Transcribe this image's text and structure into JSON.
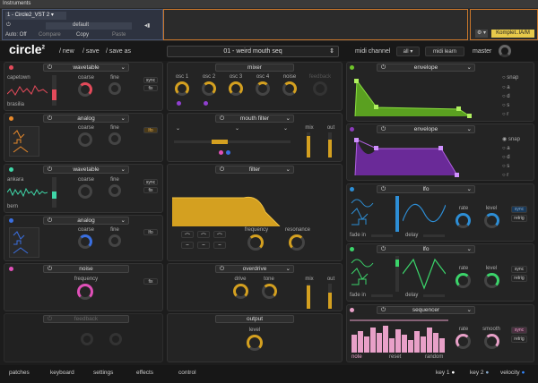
{
  "host": {
    "window_title": "Instruments",
    "track": "1 - Circle2_VST 2",
    "auto": "Auto: Off",
    "compare": "Compare",
    "copy": "Copy",
    "paste": "Paste",
    "preset": "default",
    "plugin": "Komplet..IA/M"
  },
  "app": {
    "logo": "circle",
    "logo_sup": "2",
    "menu": [
      "/ new",
      "/ save",
      "/ save as"
    ],
    "preset_name": "01 - weird mouth seq",
    "midi_channel_label": "midi channel",
    "midi_channel_value": "all",
    "midi_learn": "midi learn",
    "master": "master"
  },
  "modules": {
    "wavetable1": {
      "title": "wavetable",
      "wave_top": "capetown",
      "wave_bottom": "brasilia",
      "coarse": "coarse",
      "fine": "fine",
      "sync": "sync",
      "fix": "fix",
      "color": "#e34a5a"
    },
    "analog1": {
      "title": "analog",
      "coarse": "coarse",
      "fine": "fine",
      "lfo": "lfo",
      "color": "#e8892b"
    },
    "wavetable2": {
      "title": "wavetable",
      "wave_top": "ankara",
      "wave_bottom": "bern",
      "coarse": "coarse",
      "fine": "fine",
      "sync": "sync",
      "fix": "fix",
      "color": "#3fd6a8"
    },
    "analog2": {
      "title": "analog",
      "coarse": "coarse",
      "fine": "fine",
      "lfo": "lfo",
      "color": "#3a6fe0"
    },
    "noise": {
      "title": "noise",
      "frequency": "frequency",
      "fix": "fix",
      "color": "#e050b8"
    },
    "feedback": {
      "title": "feedback"
    }
  },
  "mixer": {
    "title": "mixer",
    "channels": [
      "osc 1",
      "osc 2",
      "osc 3",
      "osc 4",
      "noise",
      "feedback"
    ]
  },
  "mouth_filter": {
    "title": "mouth filter",
    "mix": "mix",
    "out": "out"
  },
  "filter": {
    "title": "filter",
    "frequency": "frequency",
    "resonance": "resonance"
  },
  "overdrive": {
    "title": "overdrive",
    "drive": "drive",
    "tone": "tone",
    "mix": "mix",
    "out": "out"
  },
  "output": {
    "title": "output",
    "level": "level"
  },
  "right": {
    "env1": {
      "title": "envelope",
      "snap": "snap",
      "options": [
        "a",
        "d",
        "s",
        "r"
      ],
      "color": "#6fc42a"
    },
    "env2": {
      "title": "envelope",
      "snap": "snap",
      "options": [
        "a",
        "d",
        "s",
        "r"
      ],
      "color": "#8a3ab8"
    },
    "lfo1": {
      "title": "lfo",
      "rate": "rate",
      "level": "level",
      "sync": "sync",
      "retrig": "retrig",
      "fade_in": "fade in",
      "delay": "delay",
      "color": "#2d8ed6"
    },
    "lfo2": {
      "title": "lfo",
      "rate": "rate",
      "level": "level",
      "sync": "sync",
      "retrig": "retrig",
      "fade_in": "fade in",
      "delay": "delay",
      "color": "#3bd46a"
    },
    "seq": {
      "title": "sequencer",
      "rate": "rate",
      "smooth": "smooth",
      "sync": "sync",
      "retrig": "retrig",
      "note": "note",
      "reset": "reset",
      "random": "random",
      "color": "#e8a0c8"
    }
  },
  "bottom": {
    "tabs": [
      "patches",
      "keyboard",
      "settings",
      "effects",
      "control"
    ],
    "key1": "key 1",
    "key2": "key 2",
    "velocity": "velocity"
  }
}
